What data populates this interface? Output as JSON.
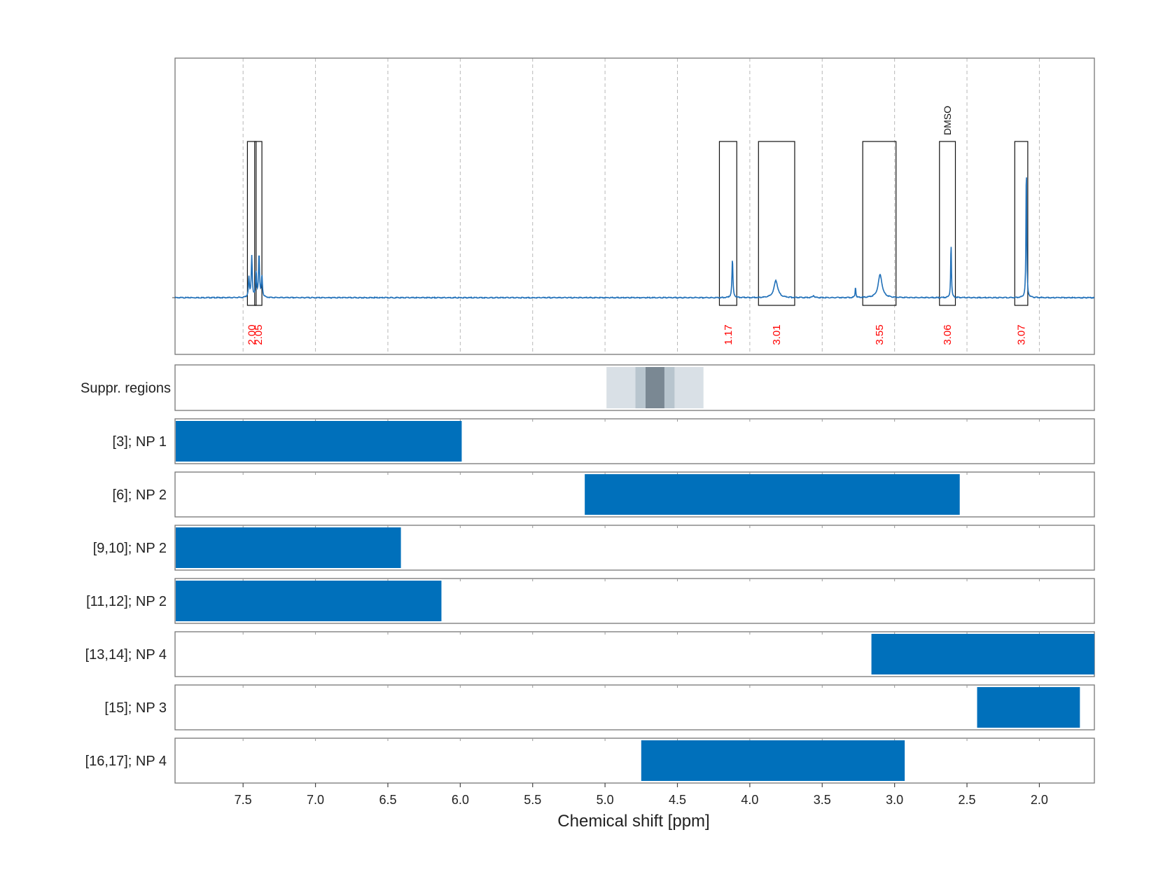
{
  "chart_data": {
    "type": "line",
    "xlabel": "Chemical shift [ppm]",
    "xlim": [
      7.97,
      1.62
    ],
    "x_ticks": [
      "7.5",
      "7.0",
      "6.5",
      "6.0",
      "5.5",
      "5.0",
      "4.5",
      "4.0",
      "3.5",
      "3.0",
      "2.5",
      "2.0"
    ],
    "x_tick_values": [
      7.5,
      7.0,
      6.5,
      6.0,
      5.5,
      5.0,
      4.5,
      4.0,
      3.5,
      3.0,
      2.5,
      2.0
    ],
    "grid": "vertical dashed",
    "spectrum": {
      "color": "#1f6fb8",
      "peaks": [
        {
          "ppm": 7.46,
          "height": 0.13,
          "width": 0.004
        },
        {
          "ppm": 7.44,
          "height": 0.27,
          "width": 0.004
        },
        {
          "ppm": 7.41,
          "height": 0.16,
          "width": 0.004
        },
        {
          "ppm": 7.39,
          "height": 0.28,
          "width": 0.004
        },
        {
          "ppm": 7.37,
          "height": 0.14,
          "width": 0.004
        },
        {
          "ppm": 4.12,
          "height": 0.25,
          "width": 0.004
        },
        {
          "ppm": 3.82,
          "height": 0.11,
          "width": 0.016
        },
        {
          "ppm": 3.56,
          "height": 0.015,
          "width": 0.006
        },
        {
          "ppm": 3.27,
          "height": 0.07,
          "width": 0.003
        },
        {
          "ppm": 3.1,
          "height": 0.15,
          "width": 0.016
        },
        {
          "ppm": 2.61,
          "height": 0.36,
          "width": 0.003
        },
        {
          "ppm": 2.09,
          "height": 0.88,
          "width": 0.003
        }
      ]
    },
    "integration_regions": [
      {
        "start": 7.47,
        "end": 7.41,
        "value": "2.00"
      },
      {
        "start": 7.42,
        "end": 7.37,
        "value": "2.05"
      },
      {
        "start": 4.21,
        "end": 4.09,
        "value": "1.17"
      },
      {
        "start": 3.94,
        "end": 3.69,
        "value": "3.01"
      },
      {
        "start": 3.22,
        "end": 2.99,
        "value": "3.55"
      },
      {
        "start": 2.69,
        "end": 2.58,
        "value": "3.06",
        "label": "DMSO"
      },
      {
        "start": 2.17,
        "end": 2.08,
        "value": "3.07"
      }
    ],
    "integral_color": "#ff0000",
    "suppression": {
      "label": "Suppr. regions",
      "bands": [
        {
          "start": 4.99,
          "end": 4.32,
          "color": "#d9e0e6"
        },
        {
          "start": 4.79,
          "end": 4.52,
          "color": "#b8c5ce"
        },
        {
          "start": 4.72,
          "end": 4.59,
          "color": "#7a8893"
        }
      ]
    },
    "series": [
      {
        "name": "[3]; NP 1",
        "start": 7.97,
        "end": 5.99
      },
      {
        "name": "[6]; NP 2",
        "start": 5.14,
        "end": 2.55
      },
      {
        "name": "[9,10]; NP 2",
        "start": 7.97,
        "end": 6.41
      },
      {
        "name": "[11,12]; NP 2",
        "start": 7.97,
        "end": 6.13
      },
      {
        "name": "[13,14]; NP 4",
        "start": 3.16,
        "end": 1.62
      },
      {
        "name": "[15]; NP 3",
        "start": 2.43,
        "end": 1.72
      },
      {
        "name": "[16,17]; NP 4",
        "start": 4.75,
        "end": 2.93
      }
    ],
    "bar_color": "#0070bb"
  }
}
